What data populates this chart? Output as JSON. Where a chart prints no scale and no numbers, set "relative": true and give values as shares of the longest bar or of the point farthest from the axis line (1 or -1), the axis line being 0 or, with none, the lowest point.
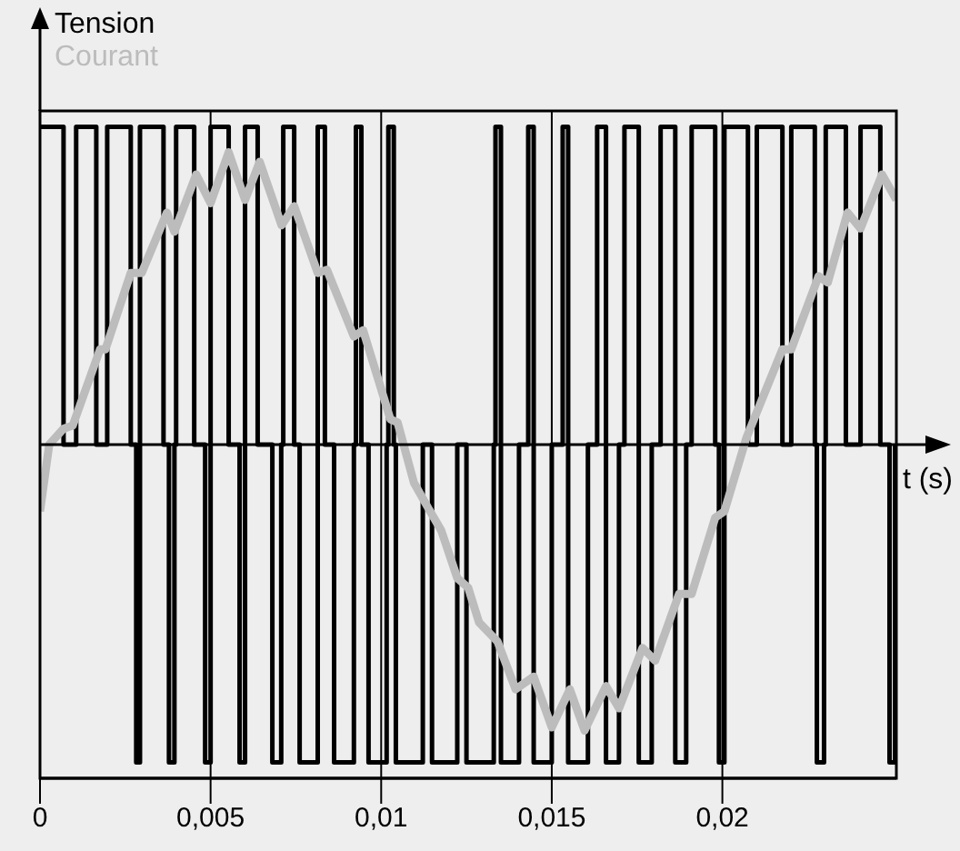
{
  "chart_data": {
    "type": "line",
    "relative": true,
    "xlabel": "t (s)",
    "xlim": [
      0,
      0.0251
    ],
    "xticks": [
      0,
      {
        "value": 0.005,
        "label": "0,005"
      },
      {
        "value": 0.01,
        "label": "0,01"
      },
      {
        "value": 0.015,
        "label": "0,015"
      },
      {
        "value": 0.02,
        "label": "0,02"
      }
    ],
    "grid": "x",
    "legend": "top left",
    "marker": "none",
    "ref_lines": [
      {
        "axis": "y",
        "value": 0
      }
    ],
    "series": [
      {
        "name": "Tension",
        "type": "step",
        "color": "#000000",
        "x": [
          0,
          0.00069,
          0.00106,
          0.00165,
          0.00197,
          0.00266,
          0.00282,
          0.00293,
          0.00362,
          0.00378,
          0.00394,
          0.00399,
          0.00452,
          0.00484,
          0.005,
          0.00553,
          0.00585,
          0.00601,
          0.00638,
          0.00681,
          0.00707,
          0.00713,
          0.00745,
          0.00761,
          0.00814,
          0.00835,
          0.00862,
          0.0092,
          0.00926,
          0.00942,
          0.00963,
          0.01016,
          0.01021,
          0.01037,
          0.01043,
          0.01122,
          0.01149,
          0.01223,
          0.0125,
          0.0133,
          0.01335,
          0.01351,
          0.01404,
          0.01431,
          0.01447,
          0.015,
          0.01532,
          0.01548,
          0.01606,
          0.01633,
          0.01659,
          0.01697,
          0.01713,
          0.01755,
          0.01793,
          0.01819,
          0.01862,
          0.01894,
          0.0191,
          0.01979,
          0.0199,
          0.02006,
          0.02075,
          0.02101,
          0.02176,
          0.02202,
          0.02271,
          0.02277,
          0.02298,
          0.02303,
          0.02362,
          0.02405,
          0.02463,
          0.0249,
          0.02506
        ],
        "values": [
          1,
          0,
          1,
          0,
          1,
          0,
          -1,
          1,
          0,
          -1,
          0,
          1,
          0,
          -1,
          1,
          0,
          -1,
          1,
          0,
          -1,
          0,
          1,
          0,
          -1,
          1,
          0,
          -1,
          0,
          1,
          0,
          -1,
          0,
          1,
          0,
          -1,
          0,
          -1,
          0,
          -1,
          0,
          1,
          -1,
          0,
          1,
          -1,
          0,
          1,
          -1,
          0,
          1,
          -1,
          0,
          1,
          -1,
          0,
          1,
          -1,
          0,
          1,
          0,
          -1,
          1,
          0,
          1,
          0,
          1,
          0,
          -1,
          0,
          1,
          0,
          1,
          0,
          -1,
          0
        ]
      },
      {
        "name": "Courant",
        "type": "line",
        "color": "#bcbcbc",
        "x": [
          0,
          0.00027,
          0.00069,
          0.00096,
          0.00176,
          0.00192,
          0.00266,
          0.00298,
          0.00372,
          0.00394,
          0.00458,
          0.005,
          0.00553,
          0.00601,
          0.00644,
          0.00708,
          0.00745,
          0.00814,
          0.00841,
          0.0092,
          0.00947,
          0.01027,
          0.01048,
          0.01096,
          0.01138,
          0.01176,
          0.01223,
          0.01255,
          0.01287,
          0.01341,
          0.01394,
          0.01447,
          0.015,
          0.01553,
          0.01596,
          0.01659,
          0.01697,
          0.01766,
          0.01803,
          0.01873,
          0.0191,
          0.01979,
          0.02006,
          0.0207,
          0.02176,
          0.02202,
          0.02282,
          0.02309,
          0.02367,
          0.02405,
          0.02468,
          0.0251
        ],
        "values": [
          -0.21,
          0,
          0.05,
          0.06,
          0.3,
          0.3,
          0.54,
          0.54,
          0.73,
          0.67,
          0.85,
          0.76,
          0.92,
          0.77,
          0.89,
          0.69,
          0.75,
          0.54,
          0.55,
          0.34,
          0.36,
          0.08,
          0.07,
          -0.12,
          -0.2,
          -0.27,
          -0.42,
          -0.45,
          -0.56,
          -0.62,
          -0.77,
          -0.73,
          -0.89,
          -0.77,
          -0.9,
          -0.76,
          -0.83,
          -0.64,
          -0.68,
          -0.47,
          -0.47,
          -0.23,
          -0.21,
          0.02,
          0.3,
          0.3,
          0.53,
          0.51,
          0.73,
          0.68,
          0.85,
          0.77
        ]
      }
    ]
  }
}
